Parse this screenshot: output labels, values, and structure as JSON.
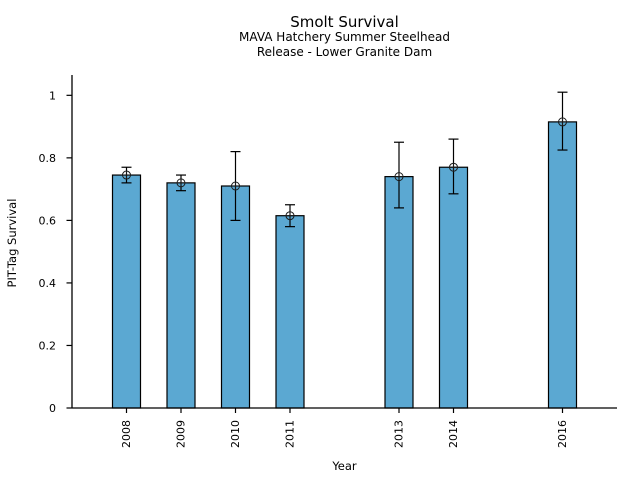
{
  "chart_data": {
    "type": "bar",
    "title": "Smolt Survival",
    "subtitle_line1": "MAVA Hatchery Summer Steelhead",
    "subtitle_line2": "Release - Lower Granite Dam",
    "xlabel": "Year",
    "ylabel": "PIT-Tag Survival",
    "categories": [
      "2008",
      "2009",
      "2010",
      "2011",
      "2013",
      "2014",
      "2016"
    ],
    "x_numeric": [
      2008,
      2009,
      2010,
      2011,
      2013,
      2014,
      2016
    ],
    "values": [
      0.745,
      0.72,
      0.71,
      0.615,
      0.74,
      0.77,
      0.915
    ],
    "error_low": [
      0.72,
      0.695,
      0.6,
      0.58,
      0.64,
      0.685,
      0.825
    ],
    "error_high": [
      0.77,
      0.745,
      0.82,
      0.65,
      0.85,
      0.86,
      1.01
    ],
    "ytick_values": [
      0,
      0.2,
      0.4,
      0.6,
      0.8,
      1
    ],
    "ytick_labels": [
      "0",
      "0.2",
      "0.4",
      "0.6",
      "0.8",
      "1"
    ],
    "ylim": [
      0,
      1.065
    ],
    "xlim": [
      2007,
      2017
    ],
    "grid": false,
    "legend": "none",
    "bar_color": "#5ba8d2",
    "bar_edge_color": "#000000",
    "error_bar_color": "#000000",
    "marker": "open-circle-plus",
    "marker_color": "#1a1a1a",
    "axis_color": "#000000",
    "background_color": "#ffffff",
    "xtick_label_rotation_deg": -90
  }
}
